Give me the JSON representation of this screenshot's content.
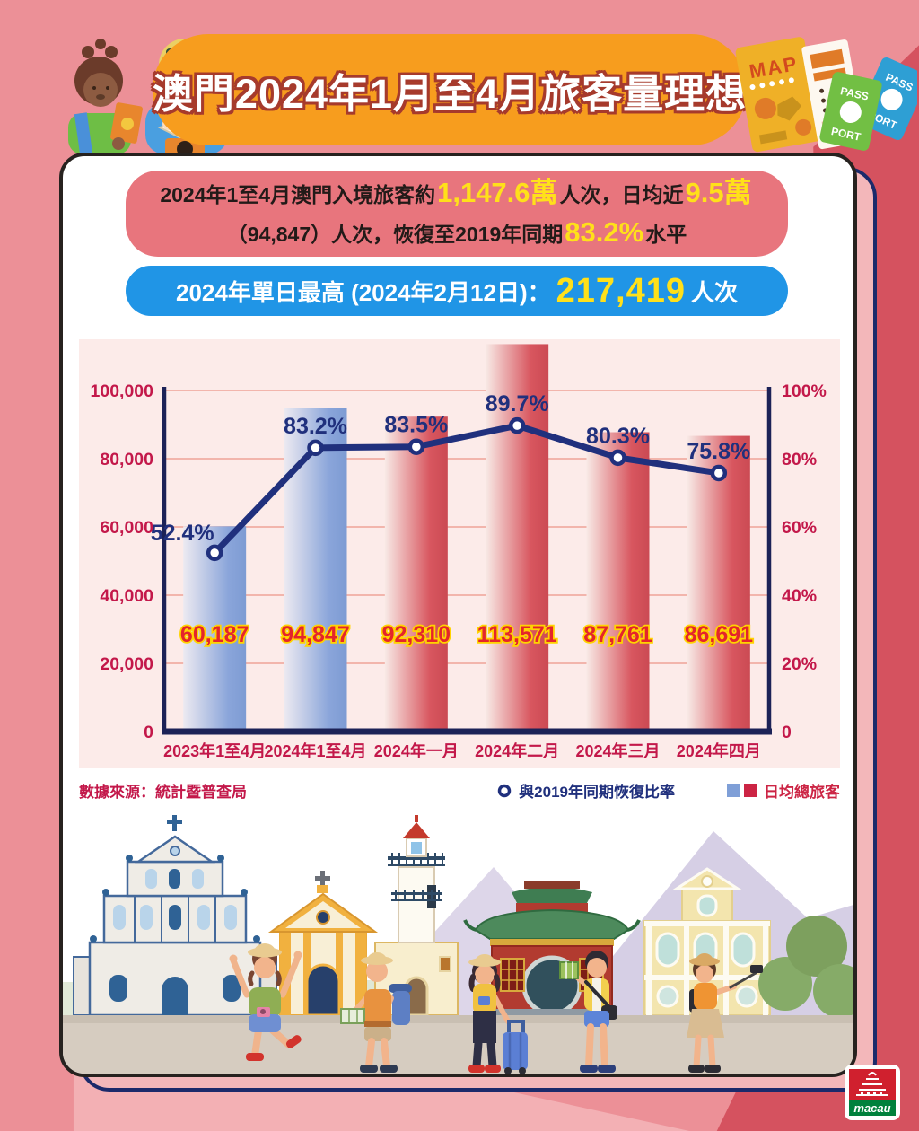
{
  "header": {
    "title": "澳門2024年1月至4月旅客量理想"
  },
  "decor": {
    "map_label": "MAP",
    "passport_green_top": "PASS",
    "passport_green_bottom": "PORT",
    "passport_blue_top": "PASS",
    "passport_blue_bottom": "PORT"
  },
  "summary_box": {
    "line1": [
      {
        "text": "2024年1至4月澳門入境旅客約",
        "highlight": false
      },
      {
        "text": "1,147.6萬",
        "highlight": true
      },
      {
        "text": "人次，日均近",
        "highlight": false
      },
      {
        "text": "9.5萬",
        "highlight": true
      }
    ],
    "line2": [
      {
        "text": "（94,847）人次，恢復至2019年同期",
        "highlight": false
      },
      {
        "text": "83.2%",
        "highlight": true
      },
      {
        "text": "水平",
        "highlight": false
      }
    ]
  },
  "peak_box": {
    "prefix": "2024年單日最高 (2024年2月12日)：",
    "value": "217,419",
    "suffix": "人次"
  },
  "chart_data": {
    "type": "bar+line",
    "categories": [
      "2023年1至4月",
      "2024年1至4月",
      "2024年一月",
      "2024年二月",
      "2024年三月",
      "2024年四月"
    ],
    "series": [
      {
        "name": "日均總旅客",
        "type": "bar",
        "values": [
          60187,
          94847,
          92310,
          113571,
          87761,
          86691
        ],
        "value_labels": [
          "60,187",
          "94,847",
          "92,310",
          "113,571",
          "87,761",
          "86,691"
        ],
        "bar_palette": [
          "blue",
          "blue",
          "red",
          "red",
          "red",
          "red"
        ]
      },
      {
        "name": "與2019年同期恢復比率",
        "type": "line",
        "values": [
          52.4,
          83.2,
          83.5,
          89.7,
          80.3,
          75.8
        ],
        "value_labels": [
          "52.4%",
          "83.2%",
          "83.5%",
          "89.7%",
          "80.3%",
          "75.8%"
        ]
      }
    ],
    "left_axis": {
      "min": 0,
      "max": 100000,
      "tick_labels": [
        "0",
        "20,000",
        "40,000",
        "60,000",
        "80,000",
        "100,000"
      ]
    },
    "right_axis": {
      "min": 0,
      "max": 100,
      "tick_labels": [
        "0",
        "20%",
        "40%",
        "60%",
        "80%",
        "100%"
      ]
    },
    "grid": true,
    "legend_position": "bottom-right"
  },
  "footer": {
    "source": "數據來源：統計暨普查局",
    "legend_line_label": "與2019年同期恢復比率",
    "legend_bar_label": "日均總旅客"
  },
  "logo": {
    "brand": "macau"
  },
  "colors": {
    "background": "#ec9097",
    "background_dark": "#d5525f",
    "background_light": "#f3b0b4",
    "banner_orange": "#f79d1e",
    "summary_pink": "#e8757d",
    "peak_blue": "#2095e6",
    "highlight_yellow": "#ffe01a",
    "chart_panel": "#fcebe9",
    "axis_navy": "#1c2257",
    "tick_crimson": "#c3184a",
    "bar_blue": "#7f9fd7",
    "bar_red": "#d6545c",
    "line_navy": "#20307d",
    "bar_label_red": "#e4252b",
    "bar_label_outline": "#ffd400",
    "gridline": "#f2b5ac"
  }
}
